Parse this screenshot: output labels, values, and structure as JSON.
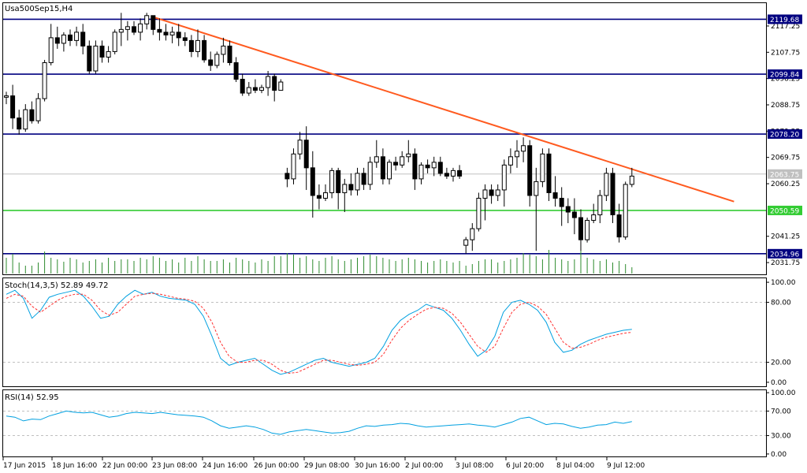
{
  "chart_data": [
    {
      "type": "candlestick",
      "title": "Usa500Sep15,H4",
      "y_ticks": [
        "2117.25",
        "2107.75",
        "2098.25",
        "2088.75",
        "2079.25",
        "2069.75",
        "2060.25",
        "2041.25",
        "2031.75"
      ],
      "ylim": [
        2027.5,
        2125.5
      ],
      "x_labels": [
        "17 Jun 2015",
        "18 Jun 16:00",
        "22 Jun 00:00",
        "23 Jun 08:00",
        "24 Jun 16:00",
        "26 Jun 00:00",
        "29 Jun 08:00",
        "30 Jun 16:00",
        "2 Jul 00:00",
        "3 Jul 08:00",
        "6 Jul 20:00",
        "8 Jul 04:00",
        "9 Jul 12:00"
      ],
      "current_price": "2063.75",
      "horizontal_levels": [
        {
          "label": "2119.68",
          "value": 2119.68,
          "color": "#000080"
        },
        {
          "label": "2099.84",
          "value": 2099.84,
          "color": "#000080"
        },
        {
          "label": "2078.20",
          "value": 2078.2,
          "color": "#000080"
        },
        {
          "label": "2050.59",
          "value": 2050.59,
          "color": "#33cc33"
        },
        {
          "label": "2034.96",
          "value": 2034.96,
          "color": "#000080"
        }
      ],
      "trendline": {
        "from": [
          23,
          2120.5
        ],
        "to": [
          114,
          2053.8
        ],
        "color": "#ff5a1f"
      },
      "candles": [
        [
          2091.5,
          2093.5,
          2089,
          2092
        ],
        [
          2092,
          2096,
          2080,
          2084
        ],
        [
          2084,
          2087,
          2078,
          2080
        ],
        [
          2080,
          2089,
          2079,
          2087
        ],
        [
          2087,
          2090,
          2082,
          2083
        ],
        [
          2083,
          2093,
          2082,
          2091
        ],
        [
          2091,
          2105,
          2090,
          2104
        ],
        [
          2104,
          2118,
          2103,
          2113
        ],
        [
          2113,
          2117,
          2109,
          2111
        ],
        [
          2111,
          2115,
          2108,
          2114
        ],
        [
          2114,
          2116,
          2110,
          2112
        ],
        [
          2112,
          2117,
          2110,
          2115
        ],
        [
          2115,
          2118,
          2107,
          2110
        ],
        [
          2110,
          2112,
          2100,
          2101
        ],
        [
          2101,
          2112,
          2100,
          2110
        ],
        [
          2110,
          2112,
          2104,
          2106
        ],
        [
          2106,
          2110,
          2104,
          2108
        ],
        [
          2108,
          2116,
          2107,
          2115
        ],
        [
          2115,
          2122,
          2110,
          2116
        ],
        [
          2116,
          2119,
          2112,
          2117
        ],
        [
          2117,
          2119,
          2114,
          2115
        ],
        [
          2115,
          2120,
          2112,
          2118
        ],
        [
          2118,
          2122,
          2116,
          2121
        ],
        [
          2121,
          2121,
          2114,
          2116
        ],
        [
          2116,
          2120,
          2112,
          2115
        ],
        [
          2115,
          2118,
          2112,
          2114
        ],
        [
          2114,
          2117,
          2111,
          2115
        ],
        [
          2115,
          2118,
          2110,
          2113
        ],
        [
          2113,
          2115,
          2110,
          2112
        ],
        [
          2112,
          2114,
          2106,
          2108
        ],
        [
          2108,
          2116,
          2106,
          2112
        ],
        [
          2112,
          2114,
          2104,
          2105
        ],
        [
          2105,
          2108,
          2101,
          2103
        ],
        [
          2103,
          2108,
          2102,
          2107
        ],
        [
          2107,
          2113,
          2104,
          2110
        ],
        [
          2110,
          2112,
          2103,
          2104
        ],
        [
          2104,
          2106,
          2097,
          2098
        ],
        [
          2098,
          2100,
          2092,
          2093
        ],
        [
          2093,
          2097,
          2092,
          2095
        ],
        [
          2095,
          2098,
          2093,
          2094
        ],
        [
          2094,
          2096,
          2093,
          2095
        ],
        [
          2095,
          2101,
          2092,
          2099
        ],
        [
          2099,
          2100,
          2090,
          2094
        ],
        [
          2094,
          2098,
          2094,
          2097
        ],
        [
          2064,
          2066,
          2059,
          2062
        ],
        [
          2062,
          2073,
          2060,
          2071
        ],
        [
          2071,
          2079,
          2069,
          2076
        ],
        [
          2076,
          2081,
          2058,
          2066
        ],
        [
          2066,
          2072,
          2048,
          2056
        ],
        [
          2056,
          2060,
          2051,
          2055
        ],
        [
          2055,
          2060,
          2054,
          2057
        ],
        [
          2057,
          2066,
          2055,
          2065
        ],
        [
          2065,
          2066,
          2051,
          2057
        ],
        [
          2057,
          2062,
          2050,
          2060
        ],
        [
          2060,
          2064,
          2056,
          2058
        ],
        [
          2058,
          2066,
          2056,
          2064
        ],
        [
          2064,
          2066,
          2058,
          2060
        ],
        [
          2060,
          2070,
          2058,
          2068
        ],
        [
          2068,
          2076,
          2066,
          2070
        ],
        [
          2070,
          2073,
          2060,
          2062
        ],
        [
          2062,
          2069,
          2060,
          2068
        ],
        [
          2068,
          2070,
          2065,
          2067
        ],
        [
          2067,
          2072,
          2066,
          2070
        ],
        [
          2070,
          2076,
          2068,
          2071
        ],
        [
          2071,
          2073,
          2058,
          2062
        ],
        [
          2062,
          2068,
          2060,
          2067
        ],
        [
          2067,
          2069,
          2064,
          2066
        ],
        [
          2066,
          2070,
          2063,
          2068
        ],
        [
          2068,
          2070,
          2063,
          2064
        ],
        [
          2064,
          2066,
          2062,
          2063
        ],
        [
          2063,
          2066,
          2061,
          2065
        ],
        [
          2065,
          2067,
          2062,
          2063
        ],
        [
          2038,
          2041,
          2035,
          2040
        ],
        [
          2040,
          2046,
          2036,
          2044
        ],
        [
          2044,
          2057,
          2043,
          2055
        ],
        [
          2055,
          2060,
          2047,
          2058
        ],
        [
          2058,
          2060,
          2053,
          2056
        ],
        [
          2056,
          2060,
          2054,
          2058
        ],
        [
          2058,
          2069,
          2052,
          2067
        ],
        [
          2067,
          2073,
          2064,
          2070
        ],
        [
          2070,
          2076,
          2066,
          2072
        ],
        [
          2072,
          2077,
          2068,
          2074
        ],
        [
          2074,
          2076,
          2052,
          2056
        ],
        [
          2056,
          2066,
          2036,
          2061
        ],
        [
          2061,
          2073,
          2059,
          2071
        ],
        [
          2071,
          2073,
          2054,
          2057
        ],
        [
          2057,
          2063,
          2052,
          2055
        ],
        [
          2055,
          2059,
          2045,
          2052
        ],
        [
          2052,
          2055,
          2046,
          2050
        ],
        [
          2050,
          2055,
          2042,
          2048
        ],
        [
          2048,
          2051,
          2036,
          2040
        ],
        [
          2040,
          2048,
          2039,
          2047
        ],
        [
          2047,
          2053,
          2046,
          2049
        ],
        [
          2049,
          2058,
          2046,
          2056
        ],
        [
          2056,
          2066,
          2054,
          2064
        ],
        [
          2064,
          2066,
          2046,
          2049
        ],
        [
          2049,
          2053,
          2039,
          2041
        ],
        [
          2041,
          2061,
          2040,
          2060
        ],
        [
          2060,
          2066,
          2059,
          2063
        ]
      ],
      "volume": [
        20,
        25,
        14,
        10,
        10,
        14,
        28,
        20,
        18,
        15,
        20,
        18,
        14,
        16,
        18,
        14,
        20,
        16,
        18,
        18,
        16,
        20,
        18,
        22,
        20,
        16,
        18,
        14,
        20,
        16,
        22,
        18,
        16,
        16,
        18,
        14,
        20,
        18,
        16,
        14,
        18,
        16,
        22,
        22,
        26,
        24,
        20,
        22,
        18,
        16,
        20,
        22,
        18,
        16,
        18,
        20,
        22,
        24,
        22,
        20,
        18,
        16,
        18,
        20,
        18,
        16,
        14,
        16,
        18,
        16,
        14,
        16,
        10,
        12,
        16,
        18,
        18,
        14,
        16,
        18,
        20,
        26,
        24,
        22,
        18,
        30,
        20,
        18,
        16,
        18,
        34,
        20,
        18,
        16,
        18,
        14,
        16,
        12,
        8
      ]
    },
    {
      "type": "line",
      "title": "Stoch(14,3,5) 52.89 49.72",
      "y_ticks": [
        "100.00",
        "80.00",
        "20.00",
        "0.00"
      ],
      "ylim": [
        -4,
        104
      ],
      "levels": [
        80,
        20
      ],
      "series": [
        {
          "color": "#00a0e0",
          "values": [
            88,
            92,
            84,
            64,
            72,
            85,
            88,
            90,
            92,
            86,
            76,
            64,
            66,
            78,
            86,
            92,
            88,
            90,
            86,
            84,
            83,
            82,
            78,
            66,
            46,
            24,
            17,
            20,
            22,
            24,
            18,
            12,
            8,
            10,
            14,
            18,
            22,
            24,
            20,
            18,
            16,
            18,
            20,
            24,
            36,
            52,
            62,
            68,
            72,
            78,
            75,
            72,
            64,
            52,
            38,
            26,
            32,
            46,
            70,
            80,
            82,
            78,
            72,
            60,
            40,
            30,
            32,
            38,
            42,
            45,
            48,
            50,
            52,
            53
          ]
        },
        {
          "color": "#ff3030",
          "dash": "3,2",
          "values": [
            84,
            88,
            86,
            76,
            70,
            76,
            82,
            86,
            88,
            88,
            82,
            72,
            67,
            70,
            78,
            86,
            88,
            89,
            88,
            86,
            84,
            83,
            81,
            74,
            60,
            40,
            26,
            20,
            20,
            22,
            22,
            18,
            12,
            9,
            10,
            14,
            18,
            22,
            22,
            20,
            18,
            17,
            18,
            20,
            28,
            42,
            54,
            62,
            68,
            73,
            75,
            74,
            69,
            60,
            48,
            36,
            30,
            36,
            54,
            70,
            78,
            80,
            76,
            68,
            54,
            40,
            34,
            35,
            38,
            42,
            45,
            47,
            49,
            50
          ]
        }
      ]
    },
    {
      "type": "line",
      "title": "RSI(14) 52.95",
      "y_ticks": [
        "100.00",
        "70.00",
        "30.00",
        "0.00"
      ],
      "ylim": [
        -4,
        104
      ],
      "levels": [
        70,
        30
      ],
      "series": [
        {
          "color": "#00a0e0",
          "values": [
            62,
            60,
            54,
            57,
            56,
            62,
            66,
            70,
            68,
            67,
            68,
            64,
            60,
            62,
            66,
            68,
            67,
            66,
            68,
            66,
            64,
            63,
            62,
            60,
            54,
            46,
            42,
            44,
            46,
            44,
            40,
            34,
            32,
            36,
            38,
            40,
            38,
            36,
            34,
            35,
            37,
            42,
            46,
            45,
            47,
            48,
            50,
            49,
            46,
            44,
            45,
            46,
            47,
            48,
            49,
            47,
            46,
            44,
            48,
            52,
            58,
            60,
            54,
            48,
            50,
            49,
            45,
            42,
            44,
            47,
            48,
            52,
            50,
            53
          ]
        }
      ]
    }
  ]
}
